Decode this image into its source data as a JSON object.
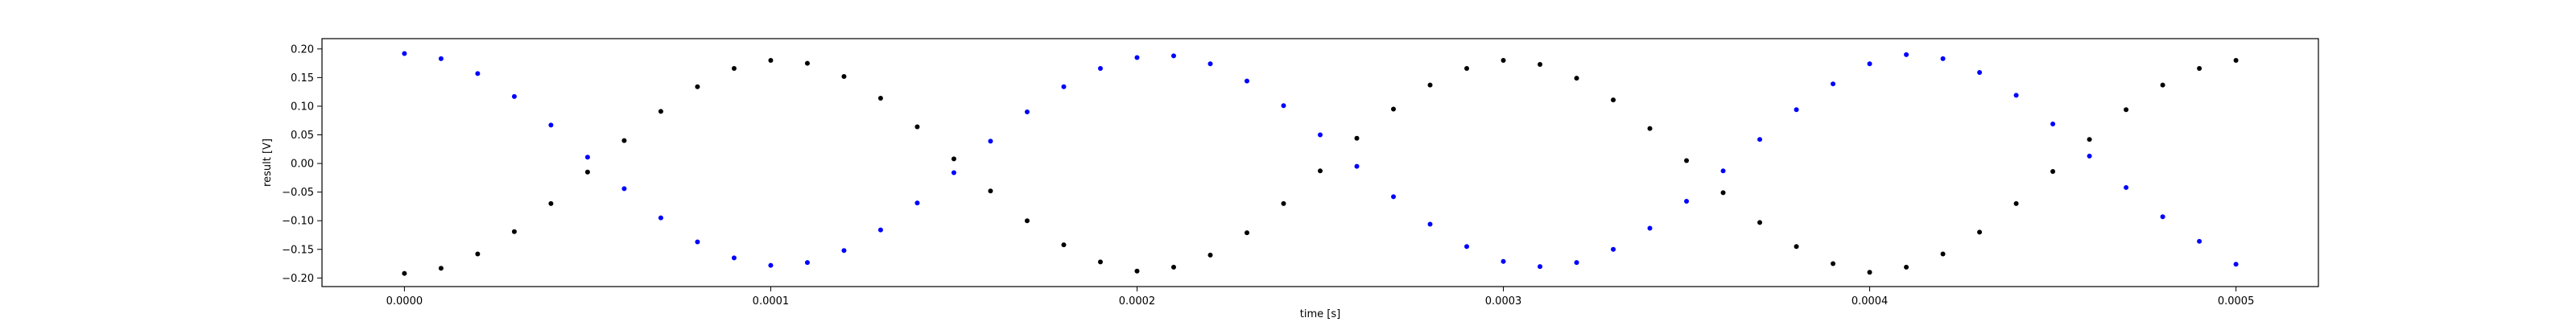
{
  "chart_data": {
    "type": "scatter",
    "title": "",
    "xlabel": "time [s]",
    "ylabel": "result [V]",
    "xlim": [
      -2.25e-05,
      0.0005225
    ],
    "ylim": [
      -0.215,
      0.218
    ],
    "grid": false,
    "x_ticks": [
      0.0,
      0.0001,
      0.0002,
      0.0003,
      0.0004,
      0.0005
    ],
    "x_tick_labels": [
      "0.0000",
      "0.0001",
      "0.0002",
      "0.0003",
      "0.0004",
      "0.0005"
    ],
    "y_ticks": [
      0.2,
      0.15,
      0.1,
      0.05,
      0.0,
      -0.05,
      -0.1,
      -0.15,
      -0.2
    ],
    "y_tick_labels": [
      "0.20",
      "0.15",
      "0.10",
      "0.05",
      "0.00",
      "−0.05",
      "−0.10",
      "−0.15",
      "−0.20"
    ],
    "series": [
      {
        "color": "#0000ff",
        "x": [
          0.0,
          1e-05,
          2e-05,
          3e-05,
          4e-05,
          5e-05,
          6e-05,
          7e-05,
          8e-05,
          9e-05,
          0.0001,
          0.00011,
          0.00012,
          0.00013,
          0.00014,
          0.00015,
          0.00016,
          0.00017,
          0.00018,
          0.00019,
          0.0002,
          0.00021,
          0.00022,
          0.00023,
          0.00024,
          0.00025,
          0.00026,
          0.00027,
          0.00028,
          0.00029,
          0.0003,
          0.00031,
          0.00032,
          0.00033,
          0.00034,
          0.00035,
          0.00036,
          0.00037,
          0.00038,
          0.00039,
          0.0004,
          0.00041,
          0.00042,
          0.00043,
          0.00044,
          0.00045,
          0.00046,
          0.00047,
          0.00048,
          0.00049,
          0.0005
        ],
        "y": [
          0.192,
          0.183,
          0.157,
          0.117,
          0.067,
          0.011,
          -0.044,
          -0.095,
          -0.137,
          -0.165,
          -0.178,
          -0.173,
          -0.152,
          -0.116,
          -0.069,
          -0.016,
          0.039,
          0.09,
          0.134,
          0.166,
          0.185,
          0.188,
          0.174,
          0.144,
          0.101,
          0.05,
          -0.005,
          -0.058,
          -0.106,
          -0.145,
          -0.171,
          -0.18,
          -0.173,
          -0.15,
          -0.113,
          -0.066,
          -0.013,
          0.042,
          0.094,
          0.139,
          0.174,
          0.19,
          0.183,
          0.159,
          0.119,
          0.069,
          0.013,
          -0.042,
          -0.093,
          -0.136,
          -0.176
        ]
      },
      {
        "color": "#000000",
        "x": [
          0.0,
          1e-05,
          2e-05,
          3e-05,
          4e-05,
          5e-05,
          6e-05,
          7e-05,
          8e-05,
          9e-05,
          0.0001,
          0.00011,
          0.00012,
          0.00013,
          0.00014,
          0.00015,
          0.00016,
          0.00017,
          0.00018,
          0.00019,
          0.0002,
          0.00021,
          0.00022,
          0.00023,
          0.00024,
          0.00025,
          0.00026,
          0.00027,
          0.00028,
          0.00029,
          0.0003,
          0.00031,
          0.00032,
          0.00033,
          0.00034,
          0.00035,
          0.00036,
          0.00037,
          0.00038,
          0.00039,
          0.0004,
          0.00041,
          0.00042,
          0.00043,
          0.00044,
          0.00045,
          0.00046,
          0.00047,
          0.00048,
          0.00049,
          0.0005
        ],
        "y": [
          -0.192,
          -0.183,
          -0.158,
          -0.119,
          -0.07,
          -0.015,
          0.04,
          0.091,
          0.134,
          0.166,
          0.18,
          0.175,
          0.152,
          0.114,
          0.064,
          0.008,
          -0.048,
          -0.1,
          -0.142,
          -0.172,
          -0.188,
          -0.181,
          -0.16,
          -0.121,
          -0.07,
          -0.013,
          0.044,
          0.095,
          0.137,
          0.166,
          0.18,
          0.173,
          0.149,
          0.111,
          0.061,
          0.005,
          -0.051,
          -0.103,
          -0.145,
          -0.175,
          -0.19,
          -0.181,
          -0.158,
          -0.12,
          -0.07,
          -0.014,
          0.042,
          0.094,
          0.137,
          0.166,
          0.18
        ]
      }
    ]
  }
}
